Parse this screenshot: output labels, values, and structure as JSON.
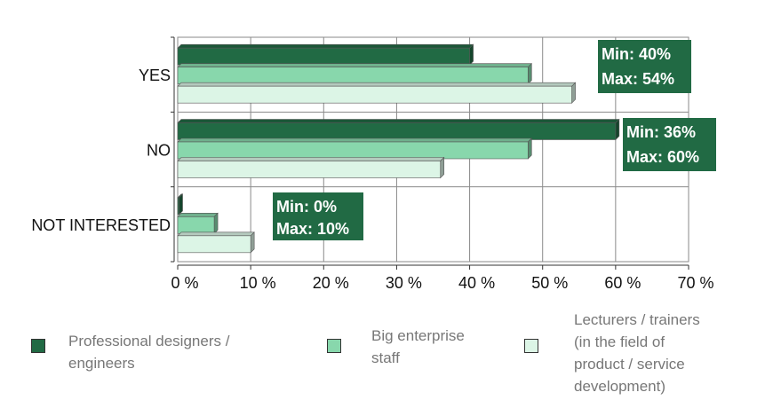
{
  "chart_data": {
    "type": "bar",
    "orientation": "horizontal",
    "categories": [
      "YES",
      "NO",
      "NOT INTERESTED"
    ],
    "series": [
      {
        "name": "Professional designers / engineers",
        "color": "#216a44",
        "values": [
          40,
          60,
          0
        ]
      },
      {
        "name": "Big enterprise staff",
        "color": "#88d7ac",
        "values": [
          48,
          48,
          5
        ]
      },
      {
        "name": "Lecturers / trainers (in the field of product / service development)",
        "color": "#dcf5e6",
        "values": [
          54,
          36,
          10
        ]
      }
    ],
    "xlim": [
      0,
      70
    ],
    "xticks": [
      "0 %",
      "10 %",
      "20 %",
      "30 %",
      "40 %",
      "50 %",
      "60 %",
      "70 %"
    ],
    "grid": true,
    "annotations": [
      {
        "category": "YES",
        "min": "Min: 40%",
        "max": "Max: 54%"
      },
      {
        "category": "NO",
        "min": "Min: 36%",
        "max": "Max: 60%"
      },
      {
        "category": "NOT INTERESTED",
        "min": "Min: 0%",
        "max": "Max: 10%"
      }
    ]
  },
  "legend": [
    {
      "label": "Professional designers /\nengineers",
      "color": "#216a44"
    },
    {
      "label": "Big enterprise\nstaff",
      "color": "#88d7ac"
    },
    {
      "label": "Lecturers / trainers\n(in the field of\nproduct / service\ndevelopment)",
      "color": "#dcf5e6"
    }
  ]
}
